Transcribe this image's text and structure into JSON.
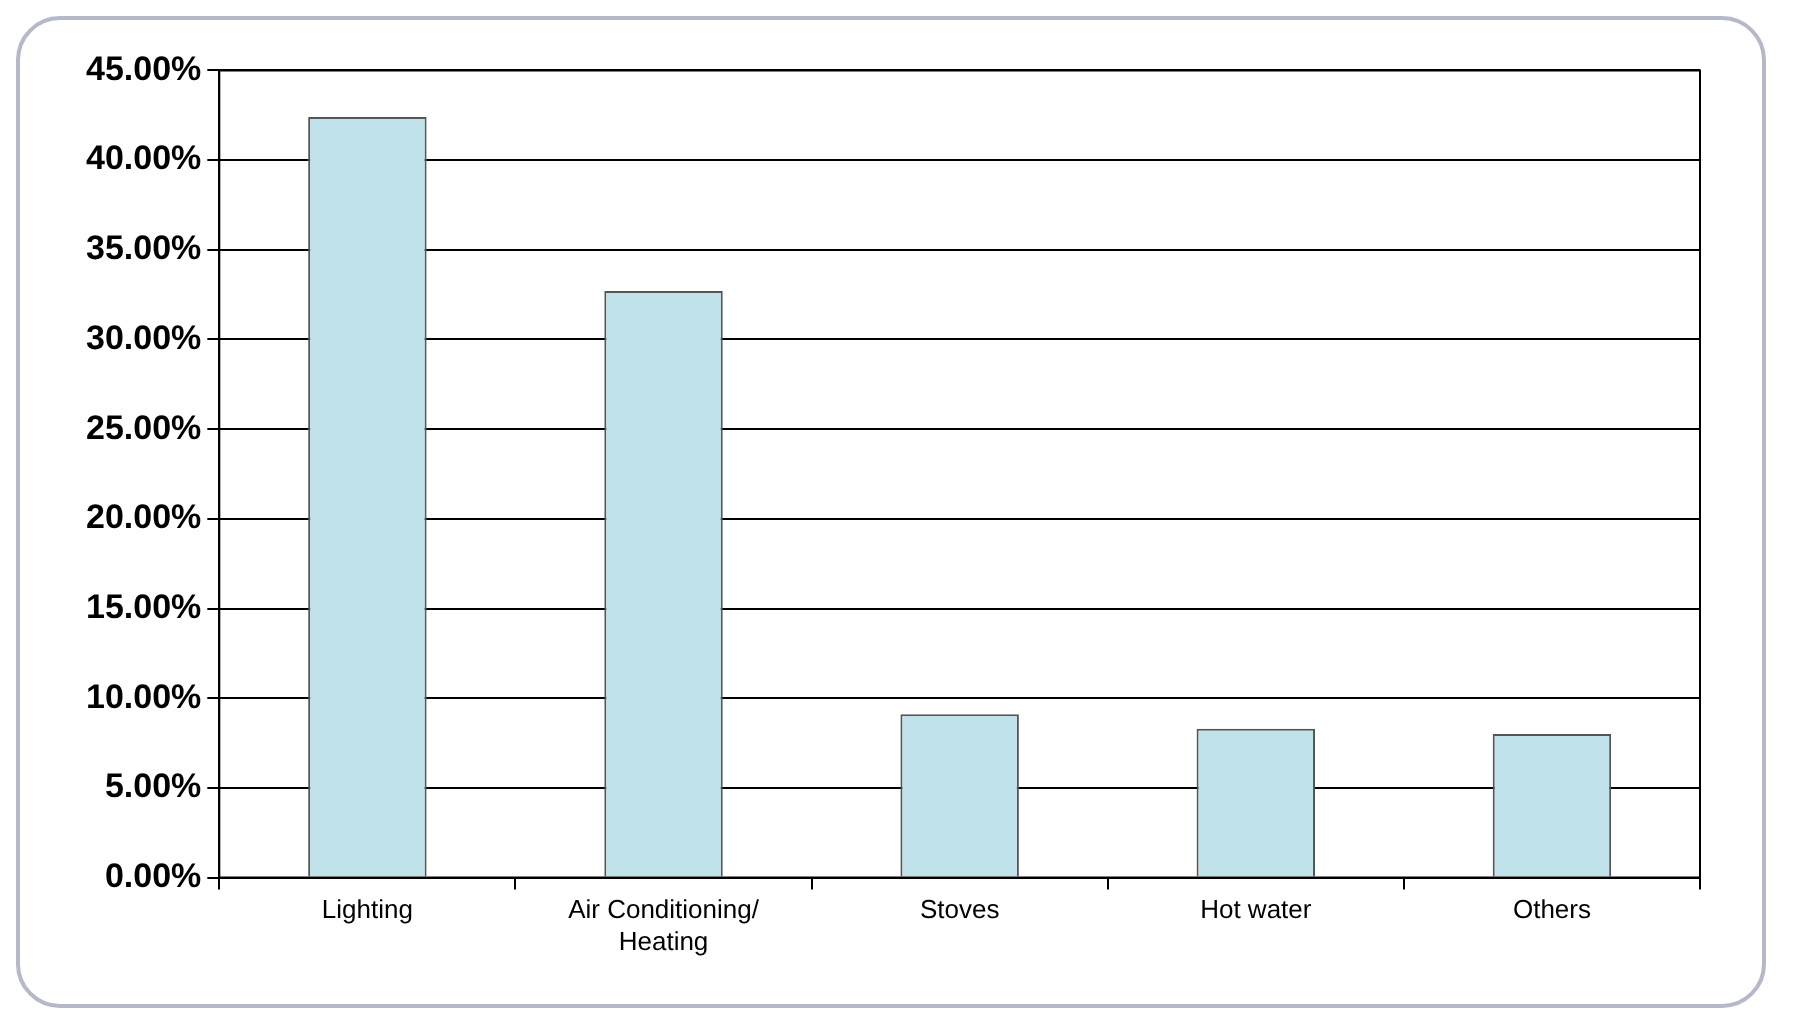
{
  "chart_data": {
    "type": "bar",
    "categories": [
      "Lighting",
      "Air Conditioning/ Heating",
      "Stoves",
      "Hot water",
      "Others"
    ],
    "values": [
      42.4,
      32.7,
      9.1,
      8.3,
      8.0
    ],
    "color": "#c0e2ea",
    "ylim": [
      0,
      45
    ],
    "yticks": [
      {
        "value": 0,
        "label": "0.00%"
      },
      {
        "value": 5,
        "label": "5.00%"
      },
      {
        "value": 10,
        "label": "10.00%"
      },
      {
        "value": 15,
        "label": "15.00%"
      },
      {
        "value": 20,
        "label": "20.00%"
      },
      {
        "value": 25,
        "label": "25.00%"
      },
      {
        "value": 30,
        "label": "30.00%"
      },
      {
        "value": 35,
        "label": "35.00%"
      },
      {
        "value": 40,
        "label": "40.00%"
      },
      {
        "value": 45,
        "label": "45.00%"
      }
    ],
    "grid": "y",
    "legend": false
  }
}
